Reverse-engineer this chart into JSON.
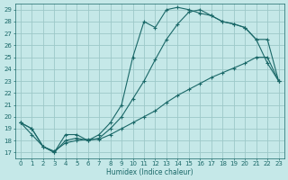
{
  "xlabel": "Humidex (Indice chaleur)",
  "bg_color": "#c5e8e8",
  "grid_color": "#9dc8c8",
  "line_color": "#1a6868",
  "xlim": [
    -0.5,
    23.5
  ],
  "ylim": [
    16.5,
    29.5
  ],
  "xticks": [
    0,
    1,
    2,
    3,
    4,
    5,
    6,
    7,
    8,
    9,
    10,
    11,
    12,
    13,
    14,
    15,
    16,
    17,
    18,
    19,
    20,
    21,
    22,
    23
  ],
  "yticks": [
    17,
    18,
    19,
    20,
    21,
    22,
    23,
    24,
    25,
    26,
    27,
    28,
    29
  ],
  "line1_x": [
    0,
    1,
    2,
    3,
    4,
    5,
    6,
    7,
    8,
    9,
    10,
    11,
    12,
    13,
    14,
    15,
    16,
    17,
    18,
    19,
    20,
    21,
    22,
    23
  ],
  "line1_y": [
    19.5,
    19.0,
    17.5,
    17.0,
    18.5,
    18.5,
    18.0,
    18.5,
    19.5,
    21.0,
    25.0,
    28.0,
    27.5,
    29.0,
    29.2,
    29.0,
    28.7,
    28.5,
    28.0,
    27.8,
    27.5,
    26.5,
    26.5,
    23.0
  ],
  "line2_x": [
    0,
    1,
    2,
    3,
    4,
    5,
    6,
    7,
    8,
    9,
    10,
    11,
    12,
    13,
    14,
    15,
    16,
    17,
    18,
    19,
    20,
    21,
    22,
    23
  ],
  "line2_y": [
    19.5,
    19.0,
    17.5,
    17.0,
    18.0,
    18.2,
    18.0,
    18.2,
    19.0,
    20.0,
    21.5,
    23.0,
    24.8,
    26.5,
    27.8,
    28.8,
    29.0,
    28.5,
    28.0,
    27.8,
    27.5,
    26.5,
    24.5,
    23.0
  ],
  "line3_x": [
    0,
    1,
    2,
    3,
    4,
    5,
    6,
    7,
    8,
    9,
    10,
    11,
    12,
    13,
    14,
    15,
    16,
    17,
    18,
    19,
    20,
    21,
    22,
    23
  ],
  "line3_y": [
    19.5,
    18.5,
    17.5,
    17.1,
    17.8,
    18.0,
    18.1,
    18.1,
    18.5,
    19.0,
    19.5,
    20.0,
    20.5,
    21.2,
    21.8,
    22.3,
    22.8,
    23.3,
    23.7,
    24.1,
    24.5,
    25.0,
    25.0,
    23.0
  ]
}
